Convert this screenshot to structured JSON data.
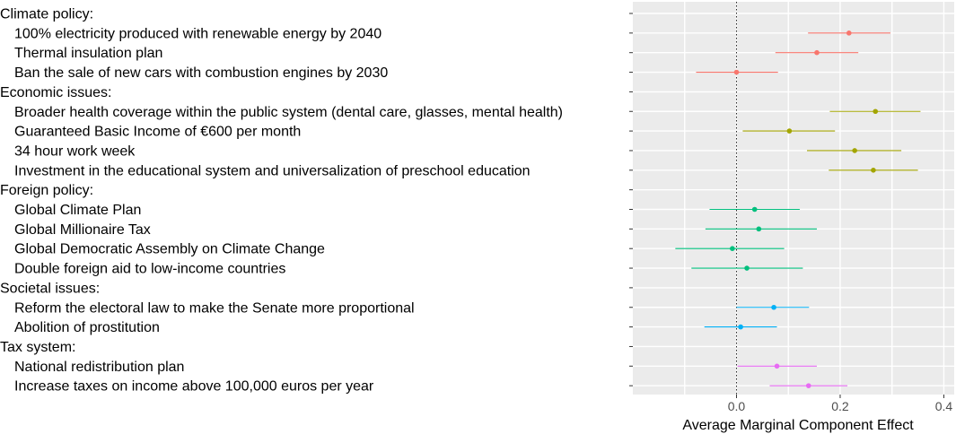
{
  "chart_data": {
    "type": "dot-whisker",
    "xlabel": "Average Marginal Component Effect",
    "xlim": [
      -0.2,
      0.42
    ],
    "xticks": [
      0.0,
      0.2,
      0.4
    ],
    "xtick_labels": [
      "0.0",
      "0.2",
      "0.4"
    ],
    "reference_line": 0,
    "grid": true,
    "rows": [
      {
        "label": "Climate policy:",
        "header": true
      },
      {
        "label": "100% electricity produced with renewable energy by 2040",
        "group": "climate",
        "estimate": 0.217,
        "lower": 0.138,
        "upper": 0.297
      },
      {
        "label": "Thermal insulation plan",
        "group": "climate",
        "estimate": 0.155,
        "lower": 0.075,
        "upper": 0.235
      },
      {
        "label": "Ban the sale of new cars with combustion engines by 2030",
        "group": "climate",
        "estimate": 0.0,
        "lower": -0.078,
        "upper": 0.08
      },
      {
        "label": "Economic issues:",
        "header": true
      },
      {
        "label": "Broader health coverage within the public system (dental care, glasses, mental health)",
        "group": "economic",
        "estimate": 0.268,
        "lower": 0.18,
        "upper": 0.355
      },
      {
        "label": "Guaranteed Basic Income of €600 per month",
        "group": "economic",
        "estimate": 0.102,
        "lower": 0.012,
        "upper": 0.19
      },
      {
        "label": "34 hour work week",
        "group": "economic",
        "estimate": 0.228,
        "lower": 0.136,
        "upper": 0.318
      },
      {
        "label": "Investment in the educational system and universalization of preschool education",
        "group": "economic",
        "estimate": 0.264,
        "lower": 0.178,
        "upper": 0.35
      },
      {
        "label": "Foreign policy:",
        "header": true
      },
      {
        "label": "Global Climate Plan",
        "group": "foreign",
        "estimate": 0.035,
        "lower": -0.052,
        "upper": 0.122
      },
      {
        "label": "Global Millionaire Tax",
        "group": "foreign",
        "estimate": 0.043,
        "lower": -0.06,
        "upper": 0.155
      },
      {
        "label": "Global Democratic Assembly on Climate Change",
        "group": "foreign",
        "estimate": -0.008,
        "lower": -0.118,
        "upper": 0.092
      },
      {
        "label": "Double foreign aid to low-income countries",
        "group": "foreign",
        "estimate": 0.02,
        "lower": -0.087,
        "upper": 0.128
      },
      {
        "label": "Societal issues:",
        "header": true
      },
      {
        "label": "Reform the electoral law to make the Senate more proportional",
        "group": "societal",
        "estimate": 0.072,
        "lower": 0.0,
        "upper": 0.14
      },
      {
        "label": "Abolition of prostitution",
        "group": "societal",
        "estimate": 0.008,
        "lower": -0.062,
        "upper": 0.078
      },
      {
        "label": "Tax system:",
        "header": true
      },
      {
        "label": "National redistribution plan",
        "group": "tax",
        "estimate": 0.078,
        "lower": 0.002,
        "upper": 0.155
      },
      {
        "label": "Increase taxes on income above 100,000 euros per year",
        "group": "tax",
        "estimate": 0.139,
        "lower": 0.064,
        "upper": 0.214
      }
    ],
    "colors": {
      "climate": "#f8766d",
      "economic": "#a3a500",
      "foreign": "#00bf7d",
      "societal": "#00b0f6",
      "tax": "#e76bf3"
    },
    "panel_color": "#ebebeb",
    "grid_color": "#ffffff"
  }
}
